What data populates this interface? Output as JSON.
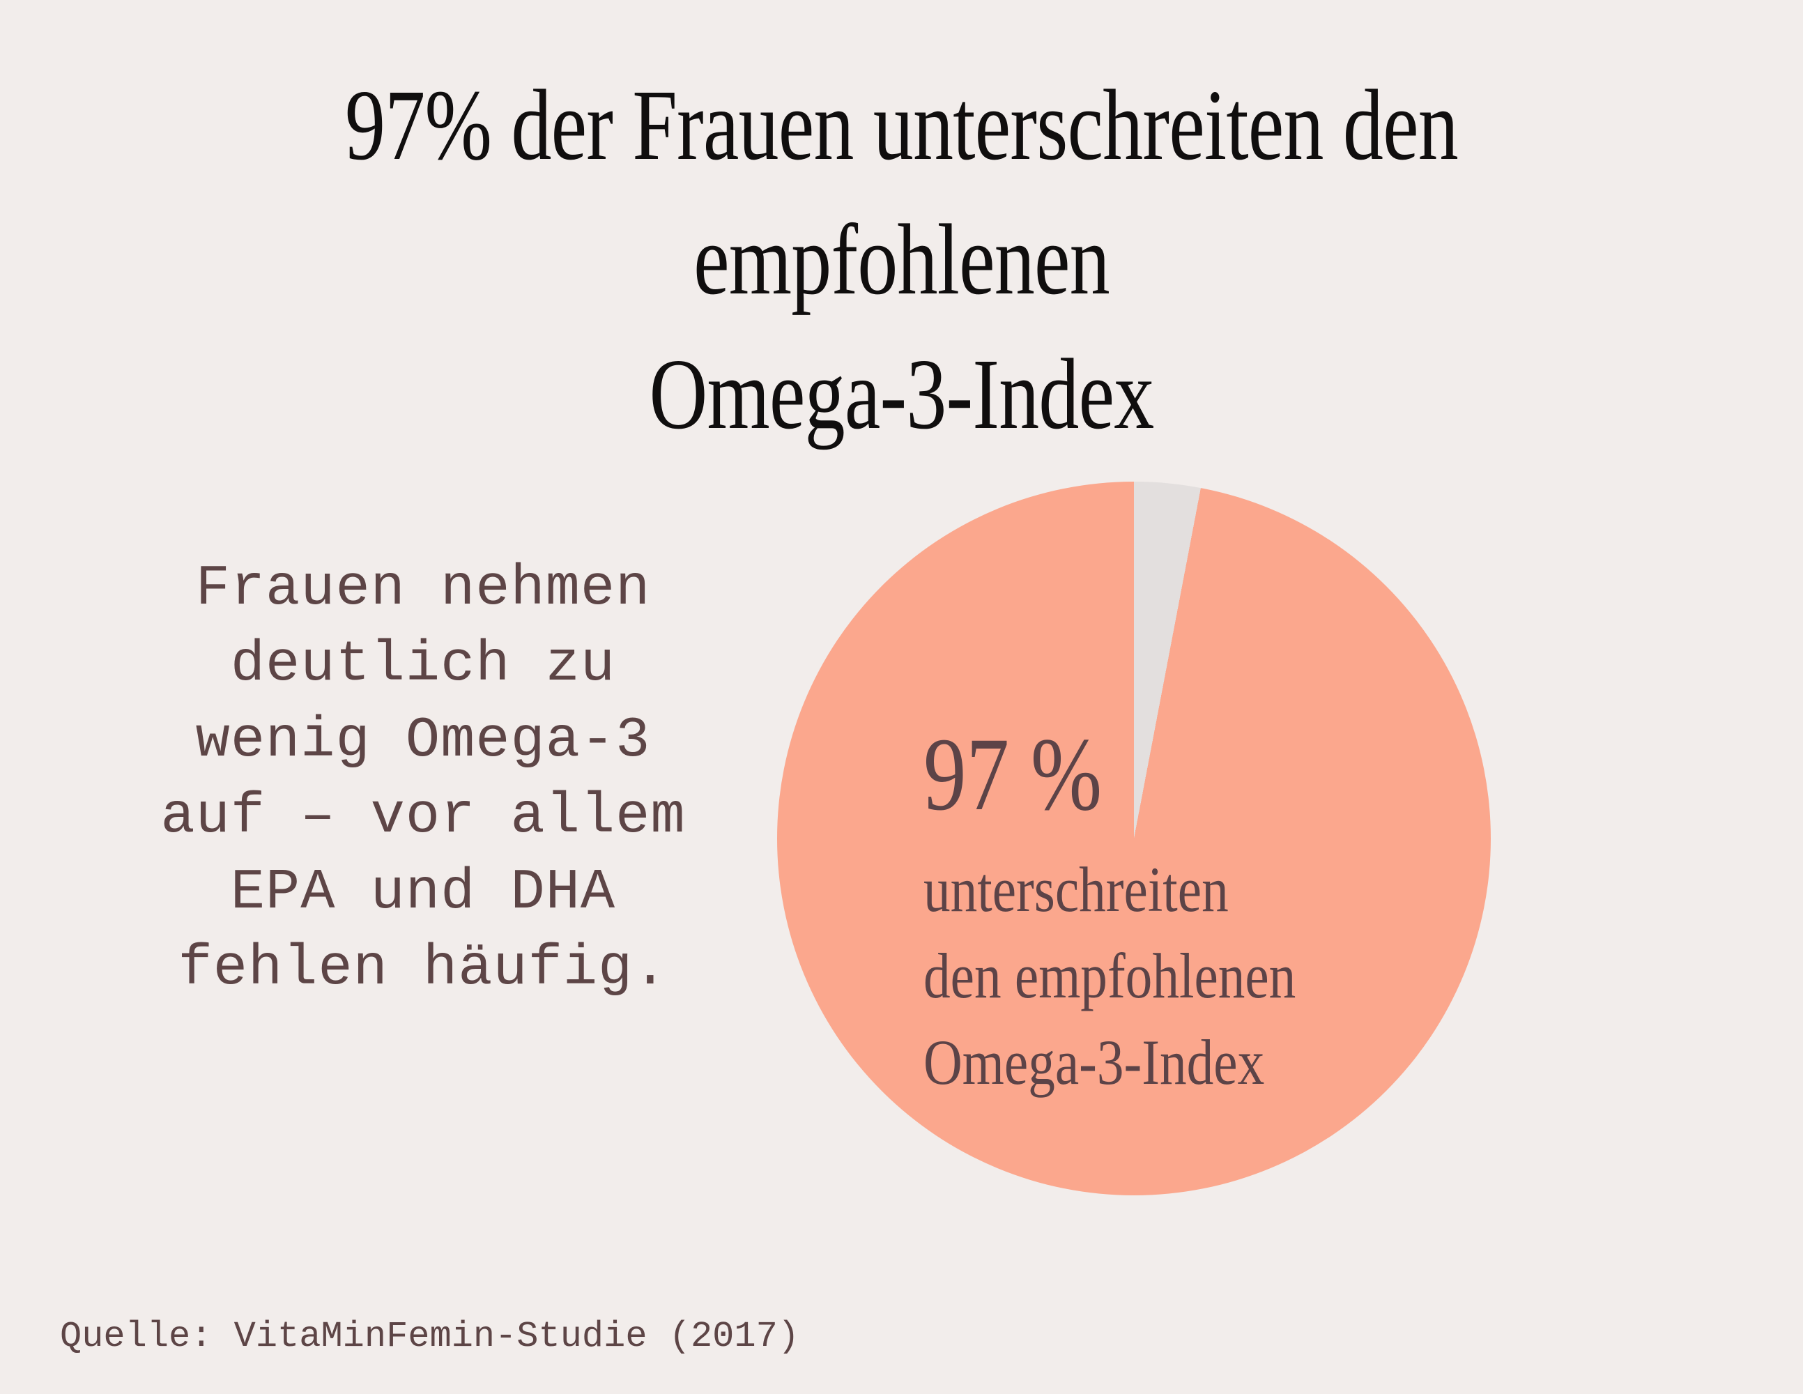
{
  "title": {
    "line1": "97% der Frauen unterschreiten den empfohlenen",
    "line2": "Omega-3-Index"
  },
  "paragraph": {
    "lines": [
      "Frauen nehmen",
      "deutlich zu",
      "wenig Omega-3",
      "auf – vor allem",
      "EPA und DHA",
      "fehlen häufig."
    ]
  },
  "pie_label": {
    "percent": "97 %",
    "lines": [
      "unterschreiten",
      "den empfohlenen",
      "Omega-3-Index"
    ]
  },
  "source": {
    "text": "Quelle: VitaMinFemin-Studie (2017)"
  },
  "colors": {
    "background": "#F2EDEB",
    "title_text": "#100E0E",
    "body_text": "#5D4546",
    "pie_label_text": "#5C4347"
  },
  "chart_data": {
    "type": "pie",
    "title": "97% der Frauen unterschreiten den empfohlenen Omega-3-Index",
    "slices": [
      {
        "label": "97 % unterschreiten den empfohlenen Omega-3-Index",
        "value": 97,
        "color": "#FBA78D"
      },
      {
        "label": "",
        "value": 3,
        "color": "#E3DFDE"
      }
    ],
    "start_angle_deg": 0,
    "direction": "clockwise",
    "minor_slice_position": "top",
    "legend": "none",
    "labels_inside": true
  }
}
